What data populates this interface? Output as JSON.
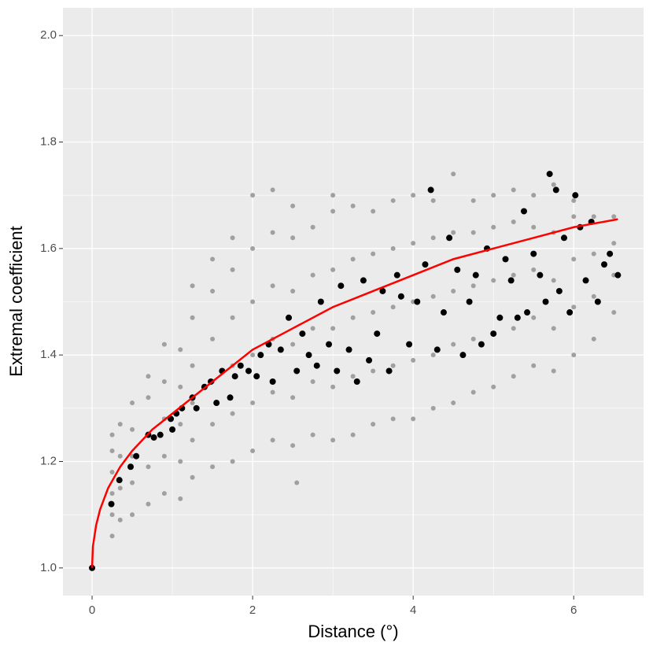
{
  "chart_data": {
    "type": "scatter",
    "xlabel": "Distance (°)",
    "ylabel": "Extremal coefficient",
    "xlim": [
      -0.363,
      6.87
    ],
    "ylim": [
      0.948,
      2.052
    ],
    "xticks": [
      0,
      2,
      4,
      6
    ],
    "yticks": [
      {
        "value": 1,
        "label": "1.0"
      },
      1.2,
      1.4,
      1.6,
      1.8,
      {
        "value": 2,
        "label": "2.0"
      }
    ],
    "grid": true,
    "background": "#ebebeb",
    "series": [
      {
        "type": "scatter",
        "color": "#a0a0a0",
        "x": [
          0.25,
          0.25,
          0.25,
          0.25,
          0.25,
          0.25,
          0.35,
          0.35,
          0.35,
          0.35,
          0.5,
          0.5,
          0.5,
          0.5,
          0.5,
          0.7,
          0.7,
          0.7,
          0.7,
          0.7,
          0.9,
          0.9,
          0.9,
          0.9,
          0.9,
          1.1,
          1.1,
          1.1,
          1.1,
          1.1,
          1.25,
          1.25,
          1.25,
          1.25,
          1.25,
          1.25,
          1.5,
          1.5,
          1.5,
          1.5,
          1.5,
          1.5,
          1.75,
          1.75,
          1.75,
          1.75,
          1.75,
          1.75,
          2.0,
          2.0,
          2.0,
          2.0,
          2.0,
          2.0,
          2.25,
          2.25,
          2.25,
          2.25,
          2.25,
          2.25,
          2.5,
          2.5,
          2.5,
          2.5,
          2.5,
          2.5,
          2.55,
          2.75,
          2.75,
          2.75,
          2.75,
          2.75,
          3.0,
          3.0,
          3.0,
          3.0,
          3.0,
          3.0,
          3.25,
          3.25,
          3.25,
          3.25,
          3.25,
          3.5,
          3.5,
          3.5,
          3.5,
          3.5,
          3.75,
          3.75,
          3.75,
          3.75,
          3.75,
          4.0,
          4.0,
          4.0,
          4.0,
          4.0,
          4.25,
          4.25,
          4.25,
          4.25,
          4.25,
          4.5,
          4.5,
          4.5,
          4.5,
          4.5,
          4.75,
          4.75,
          4.75,
          4.75,
          4.75,
          5.0,
          5.0,
          5.0,
          5.0,
          5.0,
          5.25,
          5.25,
          5.25,
          5.25,
          5.25,
          5.5,
          5.5,
          5.5,
          5.5,
          5.5,
          5.75,
          5.75,
          5.75,
          5.75,
          5.75,
          6.0,
          6.0,
          6.0,
          6.0,
          6.0,
          6.25,
          6.25,
          6.25,
          6.25,
          6.5,
          6.5,
          6.5,
          6.5
        ],
        "values": [
          1.06,
          1.1,
          1.14,
          1.18,
          1.22,
          1.25,
          1.09,
          1.15,
          1.21,
          1.27,
          1.1,
          1.16,
          1.21,
          1.26,
          1.31,
          1.12,
          1.19,
          1.25,
          1.32,
          1.36,
          1.14,
          1.21,
          1.28,
          1.35,
          1.42,
          1.13,
          1.2,
          1.27,
          1.34,
          1.41,
          1.17,
          1.24,
          1.31,
          1.38,
          1.47,
          1.53,
          1.19,
          1.27,
          1.35,
          1.43,
          1.52,
          1.58,
          1.2,
          1.29,
          1.38,
          1.47,
          1.56,
          1.62,
          1.22,
          1.31,
          1.4,
          1.5,
          1.6,
          1.7,
          1.24,
          1.33,
          1.43,
          1.53,
          1.63,
          1.71,
          1.23,
          1.32,
          1.42,
          1.52,
          1.62,
          1.68,
          1.16,
          1.25,
          1.35,
          1.45,
          1.55,
          1.64,
          1.24,
          1.34,
          1.45,
          1.56,
          1.67,
          1.7,
          1.25,
          1.36,
          1.47,
          1.58,
          1.68,
          1.27,
          1.37,
          1.48,
          1.59,
          1.67,
          1.28,
          1.38,
          1.49,
          1.6,
          1.69,
          1.28,
          1.39,
          1.5,
          1.61,
          1.7,
          1.3,
          1.4,
          1.51,
          1.62,
          1.69,
          1.31,
          1.42,
          1.52,
          1.63,
          1.74,
          1.33,
          1.43,
          1.53,
          1.63,
          1.69,
          1.34,
          1.44,
          1.54,
          1.64,
          1.7,
          1.36,
          1.45,
          1.55,
          1.65,
          1.71,
          1.38,
          1.47,
          1.56,
          1.64,
          1.7,
          1.37,
          1.45,
          1.54,
          1.63,
          1.72,
          1.4,
          1.49,
          1.58,
          1.66,
          1.69,
          1.43,
          1.51,
          1.59,
          1.66,
          1.48,
          1.55,
          1.61,
          1.66
        ]
      },
      {
        "type": "scatter",
        "color": "#000000",
        "x": [
          0,
          0.24,
          0.34,
          0.48,
          0.55,
          0.7,
          0.77,
          0.85,
          0.98,
          1.0,
          1.05,
          1.12,
          1.25,
          1.3,
          1.4,
          1.48,
          1.55,
          1.62,
          1.72,
          1.78,
          1.85,
          1.95,
          2.05,
          2.1,
          2.2,
          2.25,
          2.35,
          2.45,
          2.55,
          2.62,
          2.7,
          2.8,
          2.85,
          2.95,
          3.05,
          3.1,
          3.2,
          3.3,
          3.38,
          3.45,
          3.55,
          3.62,
          3.7,
          3.8,
          3.85,
          3.95,
          4.05,
          4.15,
          4.22,
          4.3,
          4.38,
          4.45,
          4.55,
          4.62,
          4.7,
          4.78,
          4.85,
          4.92,
          5.0,
          5.08,
          5.15,
          5.22,
          5.3,
          5.38,
          5.42,
          5.5,
          5.58,
          5.65,
          5.7,
          5.78,
          5.82,
          5.88,
          5.95,
          6.02,
          6.08,
          6.15,
          6.22,
          6.3,
          6.38,
          6.45,
          6.55
        ],
        "values": [
          1.0,
          1.12,
          1.165,
          1.19,
          1.21,
          1.25,
          1.245,
          1.25,
          1.28,
          1.26,
          1.29,
          1.3,
          1.32,
          1.3,
          1.34,
          1.35,
          1.31,
          1.37,
          1.32,
          1.36,
          1.38,
          1.37,
          1.36,
          1.4,
          1.42,
          1.35,
          1.41,
          1.47,
          1.37,
          1.44,
          1.4,
          1.38,
          1.5,
          1.42,
          1.37,
          1.53,
          1.41,
          1.35,
          1.54,
          1.39,
          1.44,
          1.52,
          1.37,
          1.55,
          1.51,
          1.42,
          1.5,
          1.57,
          1.71,
          1.41,
          1.48,
          1.62,
          1.56,
          1.4,
          1.5,
          1.55,
          1.42,
          1.6,
          1.44,
          1.47,
          1.58,
          1.54,
          1.47,
          1.67,
          1.48,
          1.59,
          1.55,
          1.5,
          1.74,
          1.71,
          1.52,
          1.62,
          1.48,
          1.7,
          1.64,
          1.54,
          1.65,
          1.5,
          1.57,
          1.59,
          1.55
        ]
      },
      {
        "type": "line",
        "color": "#ff0000",
        "x": [
          0,
          0.01,
          0.05,
          0.1,
          0.2,
          0.35,
          0.5,
          0.75,
          1,
          1.5,
          2,
          2.5,
          3,
          3.5,
          4,
          4.5,
          5,
          5.5,
          6,
          6.55
        ],
        "values": [
          1.0,
          1.04,
          1.08,
          1.11,
          1.15,
          1.19,
          1.22,
          1.26,
          1.29,
          1.35,
          1.41,
          1.45,
          1.49,
          1.52,
          1.55,
          1.58,
          1.6,
          1.62,
          1.64,
          1.655
        ]
      }
    ]
  }
}
